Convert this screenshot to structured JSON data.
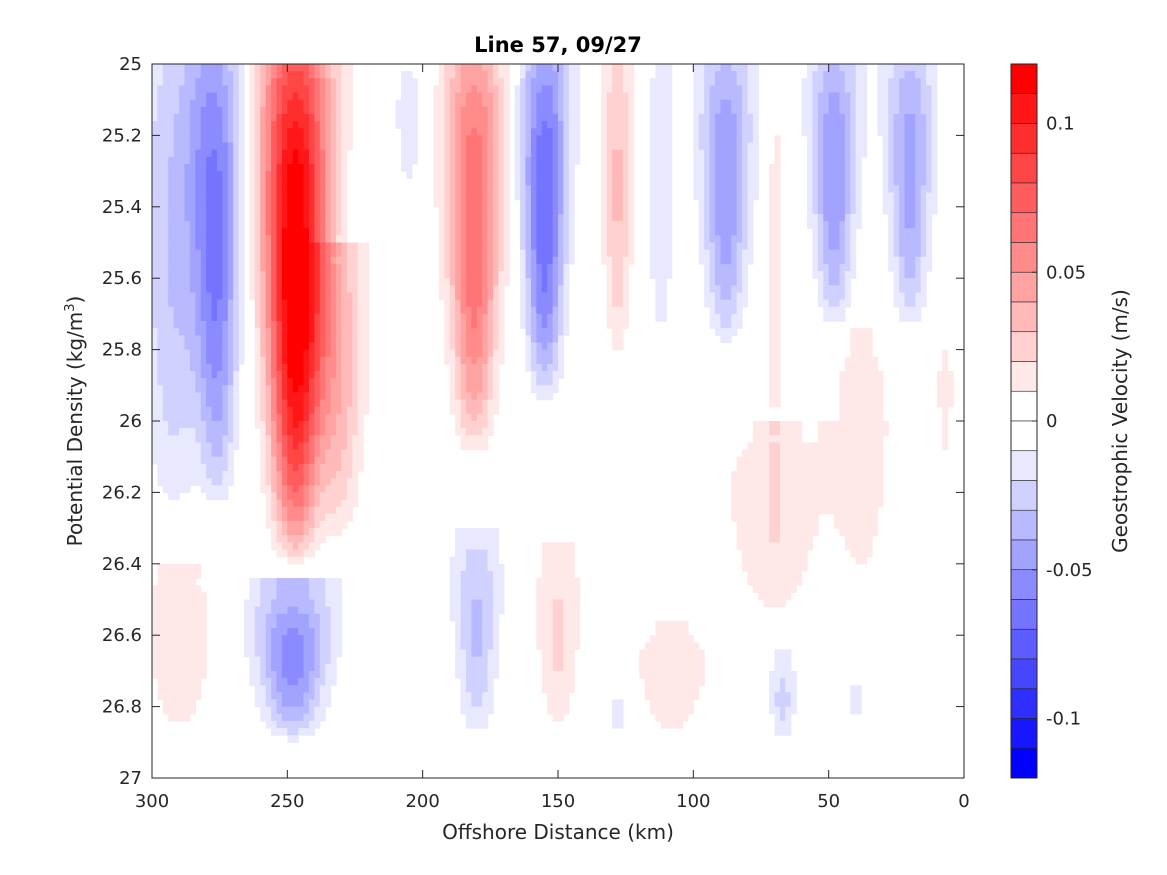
{
  "chart_data": {
    "type": "contourf",
    "title": "Line 57, 09/27",
    "xlabel": "Offshore Distance (km)",
    "ylabel_prefix": "Potential Density (kg/m",
    "ylabel_sup": "3",
    "ylabel_suffix": ")",
    "colorbar_label": "Geostrophic Velocity (m/s)",
    "xlim": [
      300,
      0
    ],
    "ylim": [
      25,
      27
    ],
    "x_reversed": true,
    "y_reversed": true,
    "x_ticks": [
      300,
      250,
      200,
      150,
      100,
      50,
      0
    ],
    "x_tick_labels": [
      "300",
      "250",
      "200",
      "150",
      "100",
      "50",
      "0"
    ],
    "y_ticks": [
      25,
      25.2,
      25.4,
      25.6,
      25.8,
      26,
      26.2,
      26.4,
      26.6,
      26.8,
      27
    ],
    "y_tick_labels": [
      "25",
      "25.2",
      "25.4",
      "25.6",
      "25.8",
      "26",
      "26.2",
      "26.4",
      "26.6",
      "26.8",
      "27"
    ],
    "data_y_range": [
      25,
      26.9
    ],
    "colorbar_range": [
      -0.12,
      0.12
    ],
    "colorbar_ticks": [
      0.1,
      0.05,
      0,
      -0.05,
      -0.1
    ],
    "colorbar_tick_labels": [
      "0.1",
      "0.05",
      "0",
      "-0.05",
      "-0.1"
    ],
    "color_levels": 24,
    "colormap": {
      "negative": "#0000ff",
      "zero": "#ffffff",
      "positive": "#ff0000"
    },
    "features": [
      {
        "x": 292,
        "sigma_top": 25.0,
        "sigma_bottom": 26.3,
        "peak": -0.03,
        "width_km": 16
      },
      {
        "x": 276,
        "sigma_top": 25.0,
        "sigma_bottom": 26.25,
        "peak": -0.058,
        "width_km": 11
      },
      {
        "x": 247,
        "sigma_top": 25.0,
        "sigma_bottom": 26.4,
        "peak": 0.125,
        "width_km": 14
      },
      {
        "x": 231,
        "sigma_top": 25.55,
        "sigma_bottom": 26.35,
        "peak": 0.035,
        "width_km": 12
      },
      {
        "x": 205,
        "sigma_top": 25.0,
        "sigma_bottom": 25.4,
        "peak": -0.015,
        "width_km": 8
      },
      {
        "x": 181,
        "sigma_top": 25.0,
        "sigma_bottom": 26.1,
        "peak": 0.07,
        "width_km": 12
      },
      {
        "x": 155,
        "sigma_top": 25.0,
        "sigma_bottom": 25.95,
        "peak": -0.07,
        "width_km": 10
      },
      {
        "x": 128,
        "sigma_top": 25.0,
        "sigma_bottom": 25.85,
        "peak": 0.032,
        "width_km": 7
      },
      {
        "x": 112,
        "sigma_top": 25.0,
        "sigma_bottom": 25.85,
        "peak": -0.018,
        "width_km": 7
      },
      {
        "x": 88,
        "sigma_top": 25.0,
        "sigma_bottom": 25.8,
        "peak": -0.05,
        "width_km": 11
      },
      {
        "x": 70,
        "sigma_top": 25.0,
        "sigma_bottom": 26.4,
        "peak": 0.015,
        "width_km": 3
      },
      {
        "x": 48,
        "sigma_top": 25.0,
        "sigma_bottom": 25.75,
        "peak": -0.05,
        "width_km": 10
      },
      {
        "x": 20,
        "sigma_top": 25.0,
        "sigma_bottom": 25.75,
        "peak": -0.045,
        "width_km": 10
      },
      {
        "x": 70,
        "sigma_top": 26.05,
        "sigma_bottom": 26.6,
        "peak": 0.018,
        "width_km": 24
      },
      {
        "x": 38,
        "sigma_top": 25.8,
        "sigma_bottom": 26.5,
        "peak": 0.017,
        "width_km": 14
      },
      {
        "x": 7,
        "sigma_top": 25.8,
        "sigma_bottom": 26.15,
        "peak": 0.015,
        "width_km": 4
      },
      {
        "x": 290,
        "sigma_top": 26.45,
        "sigma_bottom": 26.9,
        "peak": 0.02,
        "width_km": 16
      },
      {
        "x": 248,
        "sigma_top": 26.5,
        "sigma_bottom": 26.9,
        "peak": -0.055,
        "width_km": 16
      },
      {
        "x": 180,
        "sigma_top": 26.35,
        "sigma_bottom": 26.9,
        "peak": -0.032,
        "width_km": 10
      },
      {
        "x": 150,
        "sigma_top": 26.4,
        "sigma_bottom": 26.9,
        "peak": 0.022,
        "width_km": 10
      },
      {
        "x": 128,
        "sigma_top": 26.75,
        "sigma_bottom": 26.9,
        "peak": -0.014,
        "width_km": 5
      },
      {
        "x": 67,
        "sigma_top": 26.7,
        "sigma_bottom": 26.9,
        "peak": -0.024,
        "width_km": 6
      },
      {
        "x": 40,
        "sigma_top": 26.7,
        "sigma_bottom": 26.9,
        "peak": -0.012,
        "width_km": 4
      },
      {
        "x": 108,
        "sigma_top": 26.6,
        "sigma_bottom": 26.9,
        "peak": 0.018,
        "width_km": 18
      }
    ]
  }
}
